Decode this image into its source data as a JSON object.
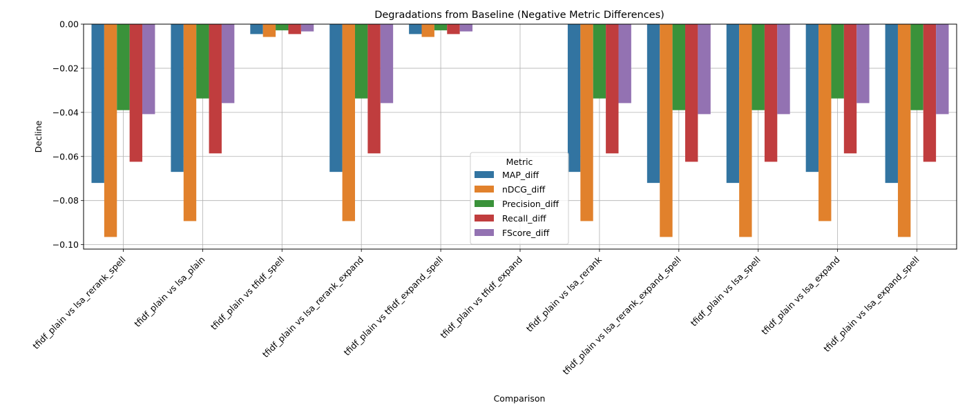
{
  "chart_data": {
    "type": "bar",
    "title": "Degradations from Baseline (Negative Metric Differences)",
    "xlabel": "Comparison",
    "ylabel": "Decline",
    "ylim": [
      -0.102,
      0.0
    ],
    "yticks": [
      -0.1,
      -0.08,
      -0.06,
      -0.04,
      -0.02,
      0.0
    ],
    "ytick_labels": [
      "−0.10",
      "−0.08",
      "−0.06",
      "−0.04",
      "−0.02",
      "0.00"
    ],
    "grid": true,
    "legend_title": "Metric",
    "legend_placement": "lower-center",
    "categories": [
      "tfidf_plain vs lsa_rerank_spell",
      "tfidf_plain vs lsa_plain",
      "tfidf_plain vs tfidf_spell",
      "tfidf_plain vs lsa_rerank_expand",
      "tfidf_plain vs tfidf_expand_spell",
      "tfidf_plain vs tfidf_expand",
      "tfidf_plain vs lsa_rerank",
      "tfidf_plain vs lsa_rerank_expand_spell",
      "tfidf_plain vs lsa_spell",
      "tfidf_plain vs lsa_expand",
      "tfidf_plain vs lsa_expand_spell"
    ],
    "series": [
      {
        "name": "MAP_diff",
        "color": "#3274a1",
        "values": [
          -0.072,
          -0.067,
          -0.0045,
          -0.067,
          -0.0045,
          0,
          -0.067,
          -0.072,
          -0.072,
          -0.067,
          -0.072
        ]
      },
      {
        "name": "nDCG_diff",
        "color": "#e1812c",
        "values": [
          -0.0965,
          -0.0893,
          -0.0058,
          -0.0893,
          -0.0058,
          0,
          -0.0893,
          -0.0965,
          -0.0965,
          -0.0893,
          -0.0965
        ]
      },
      {
        "name": "Precision_diff",
        "color": "#3a923a",
        "values": [
          -0.039,
          -0.0337,
          -0.0028,
          -0.0337,
          -0.0028,
          0,
          -0.0337,
          -0.039,
          -0.039,
          -0.0337,
          -0.039
        ]
      },
      {
        "name": "Recall_diff",
        "color": "#c03d3e",
        "values": [
          -0.0624,
          -0.0586,
          -0.0045,
          -0.0586,
          -0.0045,
          0,
          -0.0586,
          -0.0624,
          -0.0624,
          -0.0586,
          -0.0624
        ]
      },
      {
        "name": "FScore_diff",
        "color": "#9372b2",
        "values": [
          -0.0408,
          -0.0358,
          -0.0033,
          -0.0358,
          -0.0033,
          0,
          -0.0358,
          -0.0408,
          -0.0408,
          -0.0358,
          -0.0408
        ]
      }
    ]
  }
}
